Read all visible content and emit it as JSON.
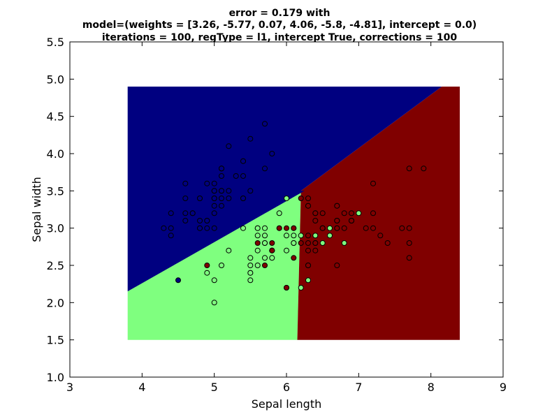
{
  "chart_data": {
    "type": "scatter",
    "title_lines": [
      "error = 0.179 with",
      "model=(weights = [3.26, -5.77, 0.07, 4.06, -5.8, -4.81], intercept = 0.0)",
      "iterations = 100, regType = l1, intercept True, corrections = 100"
    ],
    "xlabel": "Sepal length",
    "ylabel": "Sepal width",
    "xlim": [
      3,
      9
    ],
    "ylim": [
      1.0,
      5.5
    ],
    "xticks": [
      "3",
      "4",
      "5",
      "6",
      "7",
      "8",
      "9"
    ],
    "yticks": [
      "1.0",
      "1.5",
      "2.0",
      "2.5",
      "3.0",
      "3.5",
      "4.0",
      "4.5",
      "5.0",
      "5.5"
    ],
    "grid": false,
    "legend": "none",
    "decision_regions": {
      "x_range": [
        3.8,
        8.4
      ],
      "y_range": [
        1.5,
        4.9
      ],
      "classes": [
        {
          "class": 0,
          "color": "#000080"
        },
        {
          "class": 1,
          "color": "#7fff7f"
        },
        {
          "class": 2,
          "color": "#800000"
        }
      ],
      "boundaries": {
        "blue_green": {
          "points": [
            [
              3.8,
              2.15
            ],
            [
              6.25,
              3.5
            ]
          ]
        },
        "blue_red": {
          "points": [
            [
              6.2,
              3.5
            ],
            [
              8.15,
              4.9
            ]
          ]
        },
        "green_red": {
          "points": [
            [
              6.2,
              3.5
            ],
            [
              6.15,
              1.5
            ]
          ]
        }
      }
    },
    "series": [
      {
        "class": 0,
        "color": "#000080",
        "x": [
          5.1,
          4.9,
          4.7,
          4.6,
          5.0,
          5.4,
          4.6,
          5.0,
          4.4,
          4.9,
          5.4,
          4.8,
          4.8,
          4.3,
          5.8,
          5.7,
          5.4,
          5.1,
          5.7,
          5.1,
          5.4,
          5.1,
          4.6,
          5.1,
          4.8,
          5.0,
          5.0,
          5.2,
          5.2,
          4.7,
          4.8,
          5.4,
          5.2,
          5.5,
          4.9,
          5.0,
          5.5,
          4.9,
          4.4,
          5.1,
          5.0,
          4.5,
          4.4,
          5.0,
          5.1,
          4.8,
          5.1,
          4.6,
          5.3,
          5.0
        ],
        "y": [
          3.5,
          3.0,
          3.2,
          3.1,
          3.6,
          3.9,
          3.4,
          3.4,
          2.9,
          3.1,
          3.7,
          3.4,
          3.0,
          3.0,
          4.0,
          4.4,
          3.9,
          3.5,
          3.8,
          3.8,
          3.4,
          3.7,
          3.6,
          3.3,
          3.4,
          3.0,
          3.4,
          3.5,
          3.4,
          3.2,
          3.1,
          3.4,
          4.1,
          4.2,
          3.1,
          3.2,
          3.5,
          3.6,
          3.0,
          3.4,
          3.5,
          2.3,
          3.2,
          3.5,
          3.8,
          3.0,
          3.8,
          3.2,
          3.7,
          3.3
        ]
      },
      {
        "class": 1,
        "color": "#7fff7f",
        "x": [
          7.0,
          6.4,
          6.9,
          5.5,
          6.5,
          5.7,
          6.3,
          4.9,
          6.6,
          5.2,
          5.0,
          5.9,
          6.0,
          6.1,
          5.6,
          6.7,
          5.6,
          5.8,
          6.2,
          5.6,
          5.9,
          6.1,
          6.3,
          6.1,
          6.4,
          6.6,
          6.8,
          6.7,
          6.0,
          5.7,
          5.5,
          5.5,
          5.8,
          6.0,
          5.4,
          6.0,
          6.7,
          6.3,
          5.6,
          5.5,
          5.5,
          6.1,
          5.8,
          5.0,
          5.6,
          5.7,
          5.7,
          6.2,
          5.1,
          5.7
        ],
        "y": [
          3.2,
          3.2,
          3.1,
          2.3,
          2.8,
          2.8,
          3.3,
          2.4,
          2.9,
          2.7,
          2.0,
          3.0,
          2.2,
          2.9,
          2.9,
          3.1,
          3.0,
          2.7,
          2.2,
          2.5,
          3.2,
          2.8,
          2.5,
          2.8,
          2.9,
          3.0,
          2.8,
          3.0,
          2.9,
          2.6,
          2.4,
          2.4,
          2.7,
          2.7,
          3.0,
          3.4,
          3.1,
          2.3,
          3.0,
          2.5,
          2.6,
          3.0,
          2.6,
          2.3,
          2.7,
          3.0,
          2.9,
          2.9,
          2.5,
          2.8
        ]
      },
      {
        "class": 2,
        "color": "#800000",
        "x": [
          6.3,
          5.8,
          7.1,
          6.3,
          6.5,
          7.6,
          4.9,
          7.3,
          6.7,
          7.2,
          6.5,
          6.4,
          6.8,
          5.7,
          5.8,
          6.4,
          6.5,
          7.7,
          7.7,
          6.0,
          6.9,
          5.6,
          7.7,
          6.3,
          6.7,
          7.2,
          6.2,
          6.1,
          6.4,
          7.2,
          7.4,
          7.9,
          6.4,
          6.3,
          6.1,
          7.7,
          6.3,
          6.4,
          6.0,
          6.9,
          6.7,
          6.9,
          5.8,
          6.8,
          6.7,
          6.7,
          6.3,
          6.5,
          6.2,
          5.9
        ],
        "y": [
          3.3,
          2.7,
          3.0,
          2.9,
          3.0,
          3.0,
          2.5,
          2.9,
          2.5,
          3.6,
          3.2,
          2.7,
          3.0,
          2.5,
          2.8,
          3.2,
          3.0,
          3.8,
          2.6,
          2.2,
          3.2,
          2.8,
          2.8,
          2.7,
          3.3,
          3.2,
          2.8,
          3.0,
          2.8,
          3.0,
          2.8,
          3.8,
          2.8,
          2.8,
          2.6,
          3.0,
          3.4,
          3.1,
          3.0,
          3.1,
          3.1,
          3.1,
          2.7,
          3.2,
          3.3,
          3.0,
          2.5,
          3.0,
          3.4,
          3.0
        ]
      }
    ]
  }
}
